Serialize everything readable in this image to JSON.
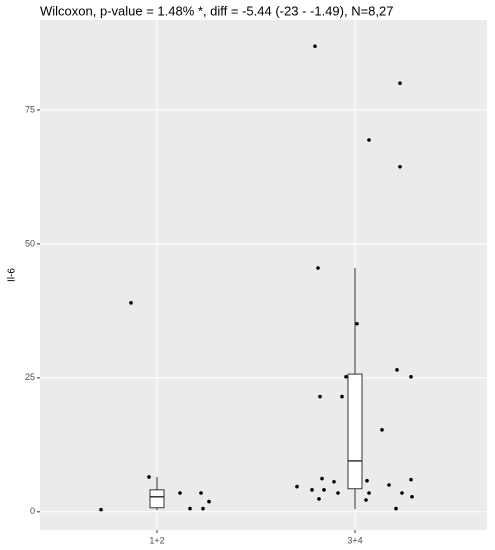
{
  "chart_data": {
    "type": "box",
    "title": "Wilcoxon, p-value = 1.48% *, diff = -5.44 (-23 - -1.49), N=8,27",
    "y_label": "Il-6",
    "categories": [
      "1+2",
      "3+4"
    ],
    "boxes": [
      {
        "low": 0.3,
        "q1": 0.75,
        "median": 2.8,
        "q3": 4.1,
        "high": 6.5
      },
      {
        "low": 0.5,
        "q1": 4.3,
        "median": 9.5,
        "q3": 25.7,
        "high": 45.5
      }
    ],
    "points": [
      [
        0.4,
        39,
        6.5,
        3.5,
        0.6,
        3.5,
        0.6,
        1.9
      ],
      [
        86.9,
        45.5,
        69.4,
        80.0,
        64.4,
        35.1,
        21.5,
        21.5,
        25.2,
        15.3,
        26.5,
        25.2,
        4.7,
        4.1,
        6.2,
        4.1,
        2.4,
        5.6,
        5.8,
        3.5,
        5.0,
        0.6,
        3.5,
        6.0,
        2.8,
        2.2,
        3.5
      ]
    ],
    "ylim": [
      -3.4,
      91.8
    ],
    "yticks": [
      0,
      25,
      50,
      75
    ],
    "grid": true,
    "panel_color": "#ebebeb",
    "box_fill": "#ffffff",
    "line_color": "#333333",
    "point_color": "#000000"
  }
}
